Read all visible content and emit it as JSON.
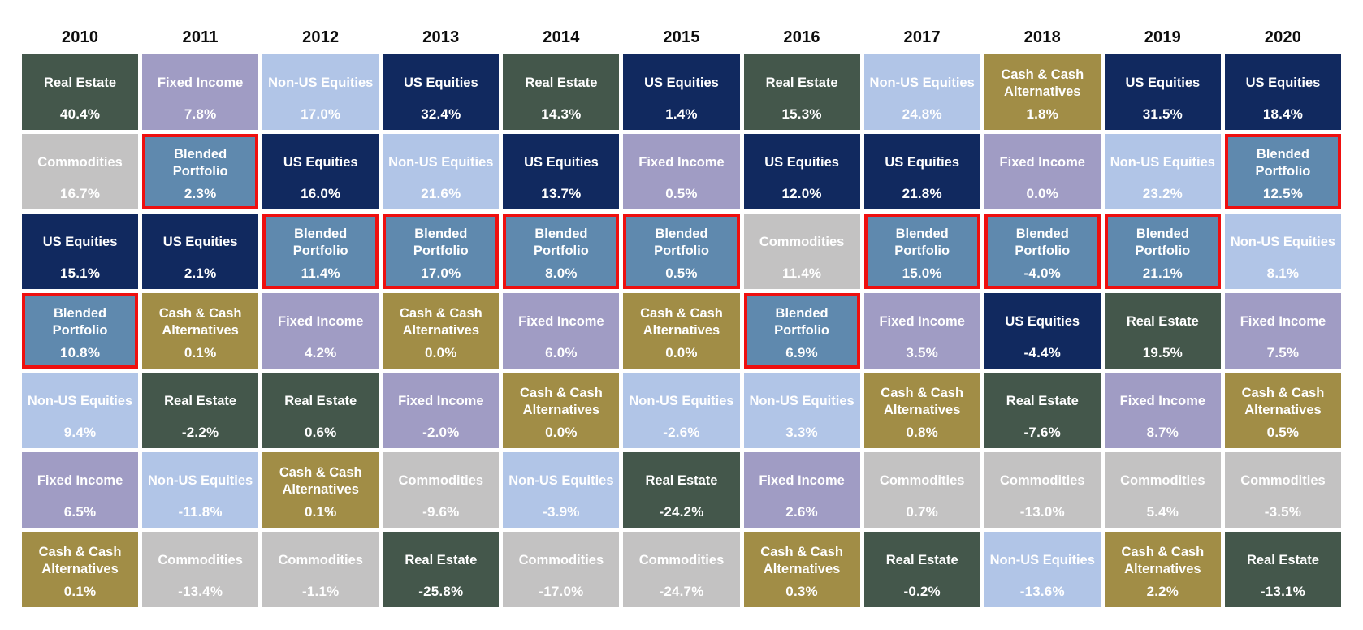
{
  "chart_title": "",
  "highlight_border_color": "#ee0f0f",
  "asset_styles": {
    "Real Estate": {
      "color": "#44574b",
      "text_color": "#ffffff"
    },
    "Fixed Income": {
      "color": "#a09cc4",
      "text_color": "#ffffff"
    },
    "Non-US Equities": {
      "color": "#b1c5e7",
      "text_color": "#ffffff"
    },
    "US Equities": {
      "color": "#11295f",
      "text_color": "#ffffff"
    },
    "Cash & Cash Alternatives": {
      "color": "#a18d46",
      "text_color": "#ffffff"
    },
    "Commodities": {
      "color": "#c3c2c2",
      "text_color": "#ffffff"
    },
    "Blended Portfolio": {
      "color": "#5f89ae",
      "text_color": "#ffffff",
      "highlighted": true
    }
  },
  "chart_data": {
    "type": "table",
    "description": "Quilt chart of annual asset class returns ranked best (top) to worst (bottom) per year; Blended Portfolio cells outlined in red",
    "legend_position": "none",
    "grid": "white gaps between cells",
    "categories": [
      "2010",
      "2011",
      "2012",
      "2013",
      "2014",
      "2015",
      "2016",
      "2017",
      "2018",
      "2019",
      "2020"
    ],
    "rankings": {
      "2010": [
        {
          "asset": "Real Estate",
          "return_pct": 40.4
        },
        {
          "asset": "Commodities",
          "return_pct": 16.7
        },
        {
          "asset": "US Equities",
          "return_pct": 15.1
        },
        {
          "asset": "Blended Portfolio",
          "return_pct": 10.8
        },
        {
          "asset": "Non-US Equities",
          "return_pct": 9.4
        },
        {
          "asset": "Fixed Income",
          "return_pct": 6.5
        },
        {
          "asset": "Cash & Cash Alternatives",
          "return_pct": 0.1
        }
      ],
      "2011": [
        {
          "asset": "Fixed Income",
          "return_pct": 7.8
        },
        {
          "asset": "Blended Portfolio",
          "return_pct": 2.3
        },
        {
          "asset": "US Equities",
          "return_pct": 2.1
        },
        {
          "asset": "Cash & Cash Alternatives",
          "return_pct": 0.1
        },
        {
          "asset": "Real Estate",
          "return_pct": -2.2
        },
        {
          "asset": "Non-US Equities",
          "return_pct": -11.8
        },
        {
          "asset": "Commodities",
          "return_pct": -13.4
        }
      ],
      "2012": [
        {
          "asset": "Non-US Equities",
          "return_pct": 17.0
        },
        {
          "asset": "US Equities",
          "return_pct": 16.0
        },
        {
          "asset": "Blended Portfolio",
          "return_pct": 11.4
        },
        {
          "asset": "Fixed Income",
          "return_pct": 4.2
        },
        {
          "asset": "Real Estate",
          "return_pct": 0.6
        },
        {
          "asset": "Cash & Cash Alternatives",
          "return_pct": 0.1
        },
        {
          "asset": "Commodities",
          "return_pct": -1.1
        }
      ],
      "2013": [
        {
          "asset": "US Equities",
          "return_pct": 32.4
        },
        {
          "asset": "Non-US Equities",
          "return_pct": 21.6
        },
        {
          "asset": "Blended Portfolio",
          "return_pct": 17.0
        },
        {
          "asset": "Cash & Cash Alternatives",
          "return_pct": 0.0
        },
        {
          "asset": "Fixed Income",
          "return_pct": -2.0
        },
        {
          "asset": "Commodities",
          "return_pct": -9.6
        },
        {
          "asset": "Real Estate",
          "return_pct": -25.8
        }
      ],
      "2014": [
        {
          "asset": "Real Estate",
          "return_pct": 14.3
        },
        {
          "asset": "US Equities",
          "return_pct": 13.7
        },
        {
          "asset": "Blended Portfolio",
          "return_pct": 8.0
        },
        {
          "asset": "Fixed Income",
          "return_pct": 6.0
        },
        {
          "asset": "Cash & Cash Alternatives",
          "return_pct": 0.0
        },
        {
          "asset": "Non-US Equities",
          "return_pct": -3.9
        },
        {
          "asset": "Commodities",
          "return_pct": -17.0
        }
      ],
      "2015": [
        {
          "asset": "US Equities",
          "return_pct": 1.4
        },
        {
          "asset": "Fixed Income",
          "return_pct": 0.5
        },
        {
          "asset": "Blended Portfolio",
          "return_pct": 0.5
        },
        {
          "asset": "Cash & Cash Alternatives",
          "return_pct": 0.0
        },
        {
          "asset": "Non-US Equities",
          "return_pct": -2.6
        },
        {
          "asset": "Real Estate",
          "return_pct": -24.2
        },
        {
          "asset": "Commodities",
          "return_pct": -24.7
        }
      ],
      "2016": [
        {
          "asset": "Real Estate",
          "return_pct": 15.3
        },
        {
          "asset": "US Equities",
          "return_pct": 12.0
        },
        {
          "asset": "Commodities",
          "return_pct": 11.4
        },
        {
          "asset": "Blended Portfolio",
          "return_pct": 6.9
        },
        {
          "asset": "Non-US Equities",
          "return_pct": 3.3
        },
        {
          "asset": "Fixed Income",
          "return_pct": 2.6
        },
        {
          "asset": "Cash & Cash Alternatives",
          "return_pct": 0.3
        }
      ],
      "2017": [
        {
          "asset": "Non-US Equities",
          "return_pct": 24.8
        },
        {
          "asset": "US Equities",
          "return_pct": 21.8
        },
        {
          "asset": "Blended Portfolio",
          "return_pct": 15.0
        },
        {
          "asset": "Fixed Income",
          "return_pct": 3.5
        },
        {
          "asset": "Cash & Cash Alternatives",
          "return_pct": 0.8
        },
        {
          "asset": "Commodities",
          "return_pct": 0.7
        },
        {
          "asset": "Real Estate",
          "return_pct": -0.2
        }
      ],
      "2018": [
        {
          "asset": "Cash & Cash Alternatives",
          "return_pct": 1.8
        },
        {
          "asset": "Fixed Income",
          "return_pct": 0.0
        },
        {
          "asset": "Blended Portfolio",
          "return_pct": -4.0
        },
        {
          "asset": "US Equities",
          "return_pct": -4.4
        },
        {
          "asset": "Real Estate",
          "return_pct": -7.6
        },
        {
          "asset": "Commodities",
          "return_pct": -13.0
        },
        {
          "asset": "Non-US Equities",
          "return_pct": -13.6
        }
      ],
      "2019": [
        {
          "asset": "US Equities",
          "return_pct": 31.5
        },
        {
          "asset": "Non-US Equities",
          "return_pct": 23.2
        },
        {
          "asset": "Blended Portfolio",
          "return_pct": 21.1
        },
        {
          "asset": "Real Estate",
          "return_pct": 19.5
        },
        {
          "asset": "Fixed Income",
          "return_pct": 8.7
        },
        {
          "asset": "Commodities",
          "return_pct": 5.4
        },
        {
          "asset": "Cash & Cash Alternatives",
          "return_pct": 2.2
        }
      ],
      "2020": [
        {
          "asset": "US Equities",
          "return_pct": 18.4
        },
        {
          "asset": "Blended Portfolio",
          "return_pct": 12.5
        },
        {
          "asset": "Non-US Equities",
          "return_pct": 8.1
        },
        {
          "asset": "Fixed Income",
          "return_pct": 7.5
        },
        {
          "asset": "Cash & Cash Alternatives",
          "return_pct": 0.5
        },
        {
          "asset": "Commodities",
          "return_pct": -3.5
        },
        {
          "asset": "Real Estate",
          "return_pct": -13.1
        }
      ]
    }
  }
}
